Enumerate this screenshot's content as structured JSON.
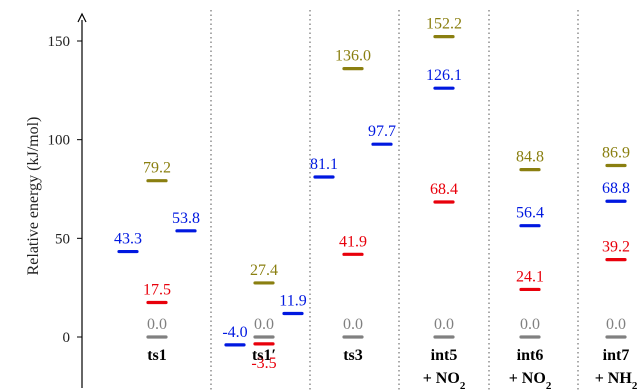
{
  "chart_data": {
    "type": "scatter",
    "ylabel": "Relative energy (kJ/mol)",
    "ylim": [
      -10,
      160
    ],
    "yticks": [
      0,
      50,
      100,
      150
    ],
    "grid": false,
    "colors": {
      "gray": "#808080",
      "red": "#e8000b",
      "blue": "#0018e0",
      "olive": "#8a7f10",
      "divider": "#555555"
    },
    "groups": [
      {
        "name": "ts1",
        "label_lines": [
          "ts1"
        ],
        "levels": [
          {
            "value": 0.0,
            "label": "0.0",
            "color": "gray",
            "slot": 0
          },
          {
            "value": 17.5,
            "label": "17.5",
            "color": "red",
            "slot": 0
          },
          {
            "value": 43.3,
            "label": "43.3",
            "color": "blue",
            "slot": -1
          },
          {
            "value": 53.8,
            "label": "53.8",
            "color": "blue",
            "slot": 1
          },
          {
            "value": 79.2,
            "label": "79.2",
            "color": "olive",
            "slot": 0
          }
        ]
      },
      {
        "name": "ts1'",
        "label_lines": [
          "ts1′"
        ],
        "levels": [
          {
            "value": 0.0,
            "label": "0.0",
            "color": "gray",
            "slot": 0
          },
          {
            "value": -3.5,
            "label": "-3.5",
            "color": "red",
            "slot": 0,
            "label_below": true
          },
          {
            "value": -4.0,
            "label": "-4.0",
            "color": "blue",
            "slot": -1
          },
          {
            "value": 11.9,
            "label": "11.9",
            "color": "blue",
            "slot": 1
          },
          {
            "value": 27.4,
            "label": "27.4",
            "color": "olive",
            "slot": 0
          }
        ]
      },
      {
        "name": "ts3",
        "label_lines": [
          "ts3"
        ],
        "levels": [
          {
            "value": 0.0,
            "label": "0.0",
            "color": "gray",
            "slot": 0
          },
          {
            "value": 41.9,
            "label": "41.9",
            "color": "red",
            "slot": 0
          },
          {
            "value": 81.1,
            "label": "81.1",
            "color": "blue",
            "slot": -1
          },
          {
            "value": 97.7,
            "label": "97.7",
            "color": "blue",
            "slot": 1
          },
          {
            "value": 136.0,
            "label": "136.0",
            "color": "olive",
            "slot": 0
          }
        ]
      },
      {
        "name": "int5 + NO2",
        "label_lines": [
          "int5",
          "+ NO2"
        ],
        "levels": [
          {
            "value": 0.0,
            "label": "0.0",
            "color": "gray",
            "slot": 0
          },
          {
            "value": 68.4,
            "label": "68.4",
            "color": "red",
            "slot": 0
          },
          {
            "value": 126.1,
            "label": "126.1",
            "color": "blue",
            "slot": 0
          },
          {
            "value": 152.2,
            "label": "152.2",
            "color": "olive",
            "slot": 0
          }
        ]
      },
      {
        "name": "int6 + NO2",
        "label_lines": [
          "int6",
          "+ NO2"
        ],
        "levels": [
          {
            "value": 0.0,
            "label": "0.0",
            "color": "gray",
            "slot": 0
          },
          {
            "value": 24.1,
            "label": "24.1",
            "color": "red",
            "slot": 0
          },
          {
            "value": 56.4,
            "label": "56.4",
            "color": "blue",
            "slot": 0
          },
          {
            "value": 84.8,
            "label": "84.8",
            "color": "olive",
            "slot": 0
          }
        ]
      },
      {
        "name": "int7 + NH2",
        "label_lines": [
          "int7",
          "+ NH2"
        ],
        "levels": [
          {
            "value": 0.0,
            "label": "0.0",
            "color": "gray",
            "slot": 0
          },
          {
            "value": 39.2,
            "label": "39.2",
            "color": "red",
            "slot": 0
          },
          {
            "value": 68.8,
            "label": "68.8",
            "color": "blue",
            "slot": 0
          },
          {
            "value": 86.9,
            "label": "86.9",
            "color": "olive",
            "slot": 0
          }
        ]
      }
    ]
  }
}
